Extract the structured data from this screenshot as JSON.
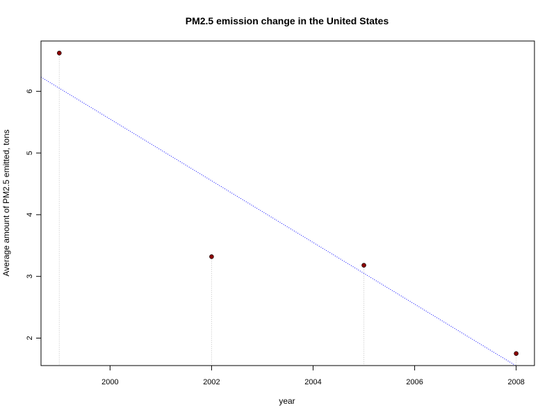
{
  "chart_data": {
    "type": "scatter",
    "title": "PM2.5 emission change in the United States",
    "xlabel": "year",
    "ylabel": "Average amount of PM2.5 emitted, tons",
    "x": [
      1999,
      2002,
      2005,
      2008
    ],
    "y": [
      6.62,
      3.32,
      3.18,
      1.75
    ],
    "xlim": [
      1998.64,
      2008.36
    ],
    "ylim": [
      1.555,
      6.815
    ],
    "x_ticks": [
      2000,
      2002,
      2004,
      2006,
      2008
    ],
    "x_tick_labels": [
      "2000",
      "2002",
      "2004",
      "2006",
      "2008"
    ],
    "y_ticks": [
      2,
      3,
      4,
      5,
      6
    ],
    "y_tick_labels": [
      "2",
      "3",
      "4",
      "5",
      "6"
    ],
    "trend_line": {
      "slope": -0.5,
      "intercept": 1005.55,
      "color": "#0000ff",
      "style": "dotted"
    },
    "point_color": "#8b0000",
    "drop_line_color": "#c0c0c0",
    "grid": false,
    "legend": "none"
  }
}
